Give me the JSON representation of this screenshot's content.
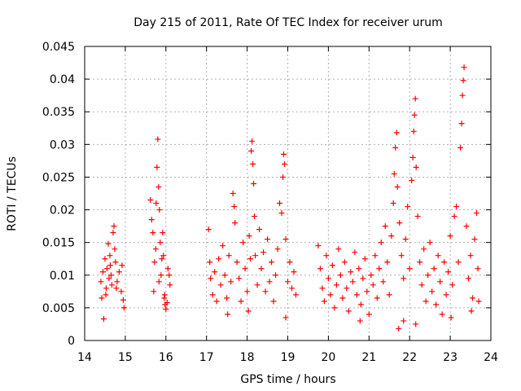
{
  "chart_data": {
    "type": "scatter",
    "title": "Day 215 of 2011, Rate Of TEC Index for receiver urum",
    "xlabel": "GPS time / hours",
    "ylabel": "ROTI / TECUs",
    "xlim": [
      14,
      24
    ],
    "ylim": [
      0,
      0.045
    ],
    "x_ticks": [
      14,
      15,
      16,
      17,
      18,
      19,
      20,
      21,
      22,
      23,
      24
    ],
    "x_tick_labels": [
      "14",
      "15",
      "16",
      "17",
      "18",
      "19",
      "20",
      "21",
      "22",
      "23",
      "24"
    ],
    "y_ticks": [
      0,
      0.005,
      0.01,
      0.015,
      0.02,
      0.025,
      0.03,
      0.035,
      0.04,
      0.045
    ],
    "y_tick_labels": [
      "0",
      "0.005",
      "0.01",
      "0.015",
      "0.02",
      "0.025",
      "0.03",
      "0.035",
      "0.04",
      "0.045"
    ],
    "grid": true,
    "marker": "+",
    "color": "#ff0000",
    "series": [
      {
        "points": [
          [
            14.4,
            0.009
          ],
          [
            14.42,
            0.0065
          ],
          [
            14.45,
            0.0105
          ],
          [
            14.47,
            0.0033
          ],
          [
            14.5,
            0.0125
          ],
          [
            14.53,
            0.008
          ],
          [
            14.55,
            0.011
          ],
          [
            14.58,
            0.0148
          ],
          [
            14.6,
            0.0095
          ],
          [
            14.62,
            0.013
          ],
          [
            14.65,
            0.01
          ],
          [
            14.67,
            0.0085
          ],
          [
            14.7,
            0.0165
          ],
          [
            14.72,
            0.0175
          ],
          [
            14.74,
            0.014
          ],
          [
            14.76,
            0.012
          ],
          [
            14.8,
            0.009
          ],
          [
            14.85,
            0.0105
          ],
          [
            14.9,
            0.0075
          ],
          [
            14.92,
            0.0115
          ],
          [
            14.95,
            0.0062
          ],
          [
            14.97,
            0.005
          ],
          [
            14.52,
            0.007
          ],
          [
            14.63,
            0.0115
          ],
          [
            14.78,
            0.008
          ],
          [
            15.62,
            0.0215
          ],
          [
            15.65,
            0.0185
          ],
          [
            15.68,
            0.0165
          ],
          [
            15.7,
            0.0075
          ],
          [
            15.72,
            0.012
          ],
          [
            15.75,
            0.014
          ],
          [
            15.78,
            0.0265
          ],
          [
            15.8,
            0.0308
          ],
          [
            15.82,
            0.0235
          ],
          [
            15.84,
            0.02
          ],
          [
            15.86,
            0.015
          ],
          [
            15.88,
            0.01
          ],
          [
            15.9,
            0.0125
          ],
          [
            15.92,
            0.0165
          ],
          [
            15.94,
            0.013
          ],
          [
            15.96,
            0.0065
          ],
          [
            15.98,
            0.0055
          ],
          [
            16.0,
            0.0048
          ],
          [
            16.03,
            0.0058
          ],
          [
            16.08,
            0.01
          ],
          [
            16.1,
            0.0085
          ],
          [
            15.76,
            0.021
          ],
          [
            15.83,
            0.009
          ],
          [
            15.97,
            0.007
          ],
          [
            16.05,
            0.011
          ],
          [
            17.05,
            0.017
          ],
          [
            17.08,
            0.012
          ],
          [
            17.1,
            0.0095
          ],
          [
            17.15,
            0.007
          ],
          [
            17.2,
            0.0105
          ],
          [
            17.25,
            0.006
          ],
          [
            17.3,
            0.0125
          ],
          [
            17.35,
            0.0085
          ],
          [
            17.4,
            0.0145
          ],
          [
            17.45,
            0.01
          ],
          [
            17.5,
            0.0065
          ],
          [
            17.55,
            0.013
          ],
          [
            17.6,
            0.009
          ],
          [
            17.65,
            0.0225
          ],
          [
            17.68,
            0.0205
          ],
          [
            17.7,
            0.018
          ],
          [
            17.75,
            0.012
          ],
          [
            17.8,
            0.0095
          ],
          [
            17.85,
            0.006
          ],
          [
            17.9,
            0.015
          ],
          [
            17.95,
            0.011
          ],
          [
            18.0,
            0.0075
          ],
          [
            18.05,
            0.016
          ],
          [
            18.08,
            0.0125
          ],
          [
            18.1,
            0.029
          ],
          [
            18.12,
            0.0305
          ],
          [
            18.14,
            0.027
          ],
          [
            18.16,
            0.024
          ],
          [
            18.18,
            0.019
          ],
          [
            18.2,
            0.013
          ],
          [
            18.25,
            0.0085
          ],
          [
            18.3,
            0.017
          ],
          [
            18.35,
            0.011
          ],
          [
            18.4,
            0.0135
          ],
          [
            18.45,
            0.0075
          ],
          [
            18.5,
            0.0155
          ],
          [
            18.55,
            0.009
          ],
          [
            18.6,
            0.012
          ],
          [
            18.65,
            0.006
          ],
          [
            18.7,
            0.01
          ],
          [
            18.75,
            0.014
          ],
          [
            18.8,
            0.021
          ],
          [
            18.85,
            0.0195
          ],
          [
            18.88,
            0.025
          ],
          [
            18.9,
            0.0285
          ],
          [
            18.92,
            0.027
          ],
          [
            18.95,
            0.0155
          ],
          [
            19.0,
            0.009
          ],
          [
            19.05,
            0.012
          ],
          [
            19.1,
            0.008
          ],
          [
            19.15,
            0.0105
          ],
          [
            19.2,
            0.007
          ],
          [
            18.95,
            0.0035
          ],
          [
            18.03,
            0.0045
          ],
          [
            17.52,
            0.004
          ],
          [
            19.75,
            0.0145
          ],
          [
            19.8,
            0.011
          ],
          [
            19.85,
            0.008
          ],
          [
            19.9,
            0.006
          ],
          [
            19.95,
            0.013
          ],
          [
            20.0,
            0.0095
          ],
          [
            20.05,
            0.007
          ],
          [
            20.1,
            0.0115
          ],
          [
            20.15,
            0.005
          ],
          [
            20.2,
            0.0085
          ],
          [
            20.25,
            0.014
          ],
          [
            20.3,
            0.01
          ],
          [
            20.35,
            0.0065
          ],
          [
            20.4,
            0.012
          ],
          [
            20.45,
            0.008
          ],
          [
            20.5,
            0.0045
          ],
          [
            20.55,
            0.0105
          ],
          [
            20.6,
            0.009
          ],
          [
            20.65,
            0.0135
          ],
          [
            20.7,
            0.007
          ],
          [
            20.75,
            0.011
          ],
          [
            20.8,
            0.0055
          ],
          [
            20.85,
            0.0095
          ],
          [
            20.9,
            0.0125
          ],
          [
            20.95,
            0.0075
          ],
          [
            21.0,
            0.004
          ],
          [
            21.05,
            0.01
          ],
          [
            21.1,
            0.0085
          ],
          [
            21.15,
            0.013
          ],
          [
            21.2,
            0.0065
          ],
          [
            21.25,
            0.011
          ],
          [
            21.3,
            0.015
          ],
          [
            21.35,
            0.009
          ],
          [
            21.4,
            0.0175
          ],
          [
            21.45,
            0.012
          ],
          [
            21.5,
            0.007
          ],
          [
            21.55,
            0.016
          ],
          [
            21.6,
            0.021
          ],
          [
            21.62,
            0.0255
          ],
          [
            21.65,
            0.0295
          ],
          [
            21.68,
            0.0318
          ],
          [
            21.7,
            0.0235
          ],
          [
            21.75,
            0.018
          ],
          [
            21.8,
            0.013
          ],
          [
            21.85,
            0.0095
          ],
          [
            21.9,
            0.0155
          ],
          [
            21.95,
            0.0205
          ],
          [
            22.0,
            0.011
          ],
          [
            22.05,
            0.0245
          ],
          [
            22.08,
            0.028
          ],
          [
            22.1,
            0.032
          ],
          [
            22.12,
            0.0345
          ],
          [
            22.14,
            0.037
          ],
          [
            22.16,
            0.0265
          ],
          [
            22.2,
            0.019
          ],
          [
            22.25,
            0.012
          ],
          [
            22.3,
            0.0085
          ],
          [
            22.35,
            0.014
          ],
          [
            22.4,
            0.006
          ],
          [
            22.45,
            0.01
          ],
          [
            22.5,
            0.015
          ],
          [
            22.55,
            0.0075
          ],
          [
            22.6,
            0.011
          ],
          [
            22.65,
            0.0055
          ],
          [
            22.7,
            0.013
          ],
          [
            22.75,
            0.009
          ],
          [
            22.8,
            0.004
          ],
          [
            22.85,
            0.012
          ],
          [
            22.9,
            0.007
          ],
          [
            22.95,
            0.0105
          ],
          [
            23.0,
            0.016
          ],
          [
            23.05,
            0.0085
          ],
          [
            23.1,
            0.019
          ],
          [
            23.15,
            0.0205
          ],
          [
            23.2,
            0.012
          ],
          [
            23.25,
            0.0295
          ],
          [
            23.28,
            0.0332
          ],
          [
            23.3,
            0.0375
          ],
          [
            23.32,
            0.0398
          ],
          [
            23.34,
            0.0418
          ],
          [
            23.4,
            0.0175
          ],
          [
            23.45,
            0.0095
          ],
          [
            23.5,
            0.013
          ],
          [
            23.55,
            0.0065
          ],
          [
            23.6,
            0.0155
          ],
          [
            23.65,
            0.0195
          ],
          [
            23.68,
            0.011
          ],
          [
            23.7,
            0.006
          ],
          [
            21.73,
            0.0018
          ],
          [
            21.85,
            0.003
          ],
          [
            22.15,
            0.0025
          ],
          [
            23.02,
            0.0035
          ],
          [
            20.78,
            0.003
          ],
          [
            23.52,
            0.0045
          ]
        ]
      }
    ]
  }
}
